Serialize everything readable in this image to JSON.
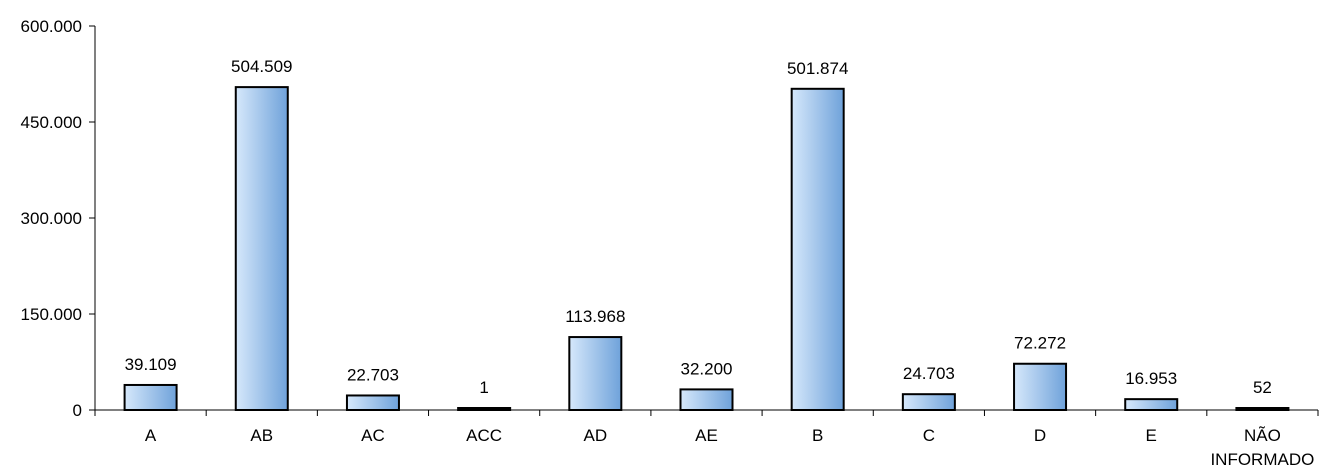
{
  "chart_data": {
    "type": "bar",
    "categories": [
      "A",
      "AB",
      "AC",
      "ACC",
      "AD",
      "AE",
      "B",
      "C",
      "D",
      "E",
      "NÃO INFORMADO"
    ],
    "category_lines": [
      [
        "A"
      ],
      [
        "AB"
      ],
      [
        "AC"
      ],
      [
        "ACC"
      ],
      [
        "AD"
      ],
      [
        "AE"
      ],
      [
        "B"
      ],
      [
        "C"
      ],
      [
        "D"
      ],
      [
        "E"
      ],
      [
        "NÃO",
        "INFORMADO"
      ]
    ],
    "values": [
      39109,
      504509,
      22703,
      1,
      113968,
      32200,
      501874,
      24703,
      72272,
      16953,
      52
    ],
    "value_labels": [
      "39.109",
      "504.509",
      "22.703",
      "1",
      "113.968",
      "32.200",
      "501.874",
      "24.703",
      "72.272",
      "16.953",
      "52"
    ],
    "yticks": [
      0,
      150000,
      300000,
      450000,
      600000
    ],
    "ytick_labels": [
      "0",
      "150.000",
      "300.000",
      "450.000",
      "600.000"
    ],
    "ylim": [
      0,
      600000
    ],
    "title": "",
    "xlabel": "",
    "ylabel": "",
    "grid": false,
    "legend": "none",
    "colors": {
      "bar_light": "#d6e8fb",
      "bar_dark": "#6fa2da",
      "outline": "#000000"
    }
  }
}
